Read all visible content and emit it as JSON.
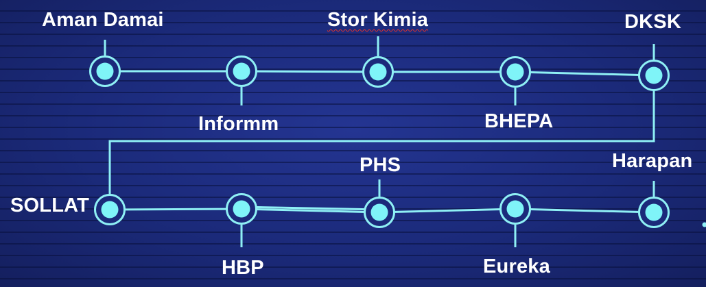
{
  "diagram": {
    "colors": {
      "line": "#8ff0f5",
      "node_fill": "#7ff4f8",
      "node_ring": "#8ff0f5",
      "node_gap": "#1b2a7a",
      "text": "#ffffff",
      "background": "#1c2a78"
    },
    "row1": {
      "stations": [
        "Aman Damai",
        "Informm",
        "Stor Kimia",
        "BHEPA",
        "DKSK"
      ]
    },
    "row2": {
      "stations": [
        "SOLLAT",
        "HBP",
        "PHS",
        "Eureka",
        "Harapan"
      ]
    }
  }
}
